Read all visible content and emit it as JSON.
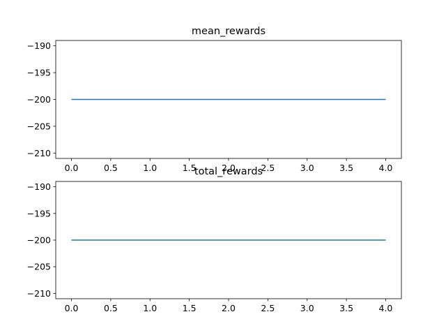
{
  "chart_data": [
    {
      "type": "line",
      "title": "mean_rewards",
      "xlabel": "",
      "ylabel": "",
      "x": [
        0,
        1,
        2,
        3,
        4
      ],
      "series": [
        {
          "values": [
            -200,
            -200,
            -200,
            -200,
            -200
          ],
          "color": "#1f77b4"
        }
      ],
      "xlim": [
        -0.2,
        4.2
      ],
      "ylim": [
        -211,
        -189
      ],
      "xticks": [
        0.0,
        0.5,
        1.0,
        1.5,
        2.0,
        2.5,
        3.0,
        3.5,
        4.0
      ],
      "xtick_labels": [
        "0.0",
        "0.5",
        "1.0",
        "1.5",
        "2.0",
        "2.5",
        "3.0",
        "3.5",
        "4.0"
      ],
      "yticks": [
        -190,
        -195,
        -200,
        -205,
        -210
      ],
      "ytick_labels": [
        "−190",
        "−195",
        "−200",
        "−205",
        "−210"
      ],
      "grid": false,
      "legend": "none"
    },
    {
      "type": "line",
      "title": "total_rewards",
      "xlabel": "",
      "ylabel": "",
      "x": [
        0,
        1,
        2,
        3,
        4
      ],
      "series": [
        {
          "values": [
            -200,
            -200,
            -200,
            -200,
            -200
          ],
          "color": "#1f77b4"
        }
      ],
      "xlim": [
        -0.2,
        4.2
      ],
      "ylim": [
        -211,
        -189
      ],
      "xticks": [
        0.0,
        0.5,
        1.0,
        1.5,
        2.0,
        2.5,
        3.0,
        3.5,
        4.0
      ],
      "xtick_labels": [
        "0.0",
        "0.5",
        "1.0",
        "1.5",
        "2.0",
        "2.5",
        "3.0",
        "3.5",
        "4.0"
      ],
      "yticks": [
        -190,
        -195,
        -200,
        -205,
        -210
      ],
      "ytick_labels": [
        "−190",
        "−195",
        "−200",
        "−205",
        "−210"
      ],
      "grid": false,
      "legend": "none"
    }
  ]
}
